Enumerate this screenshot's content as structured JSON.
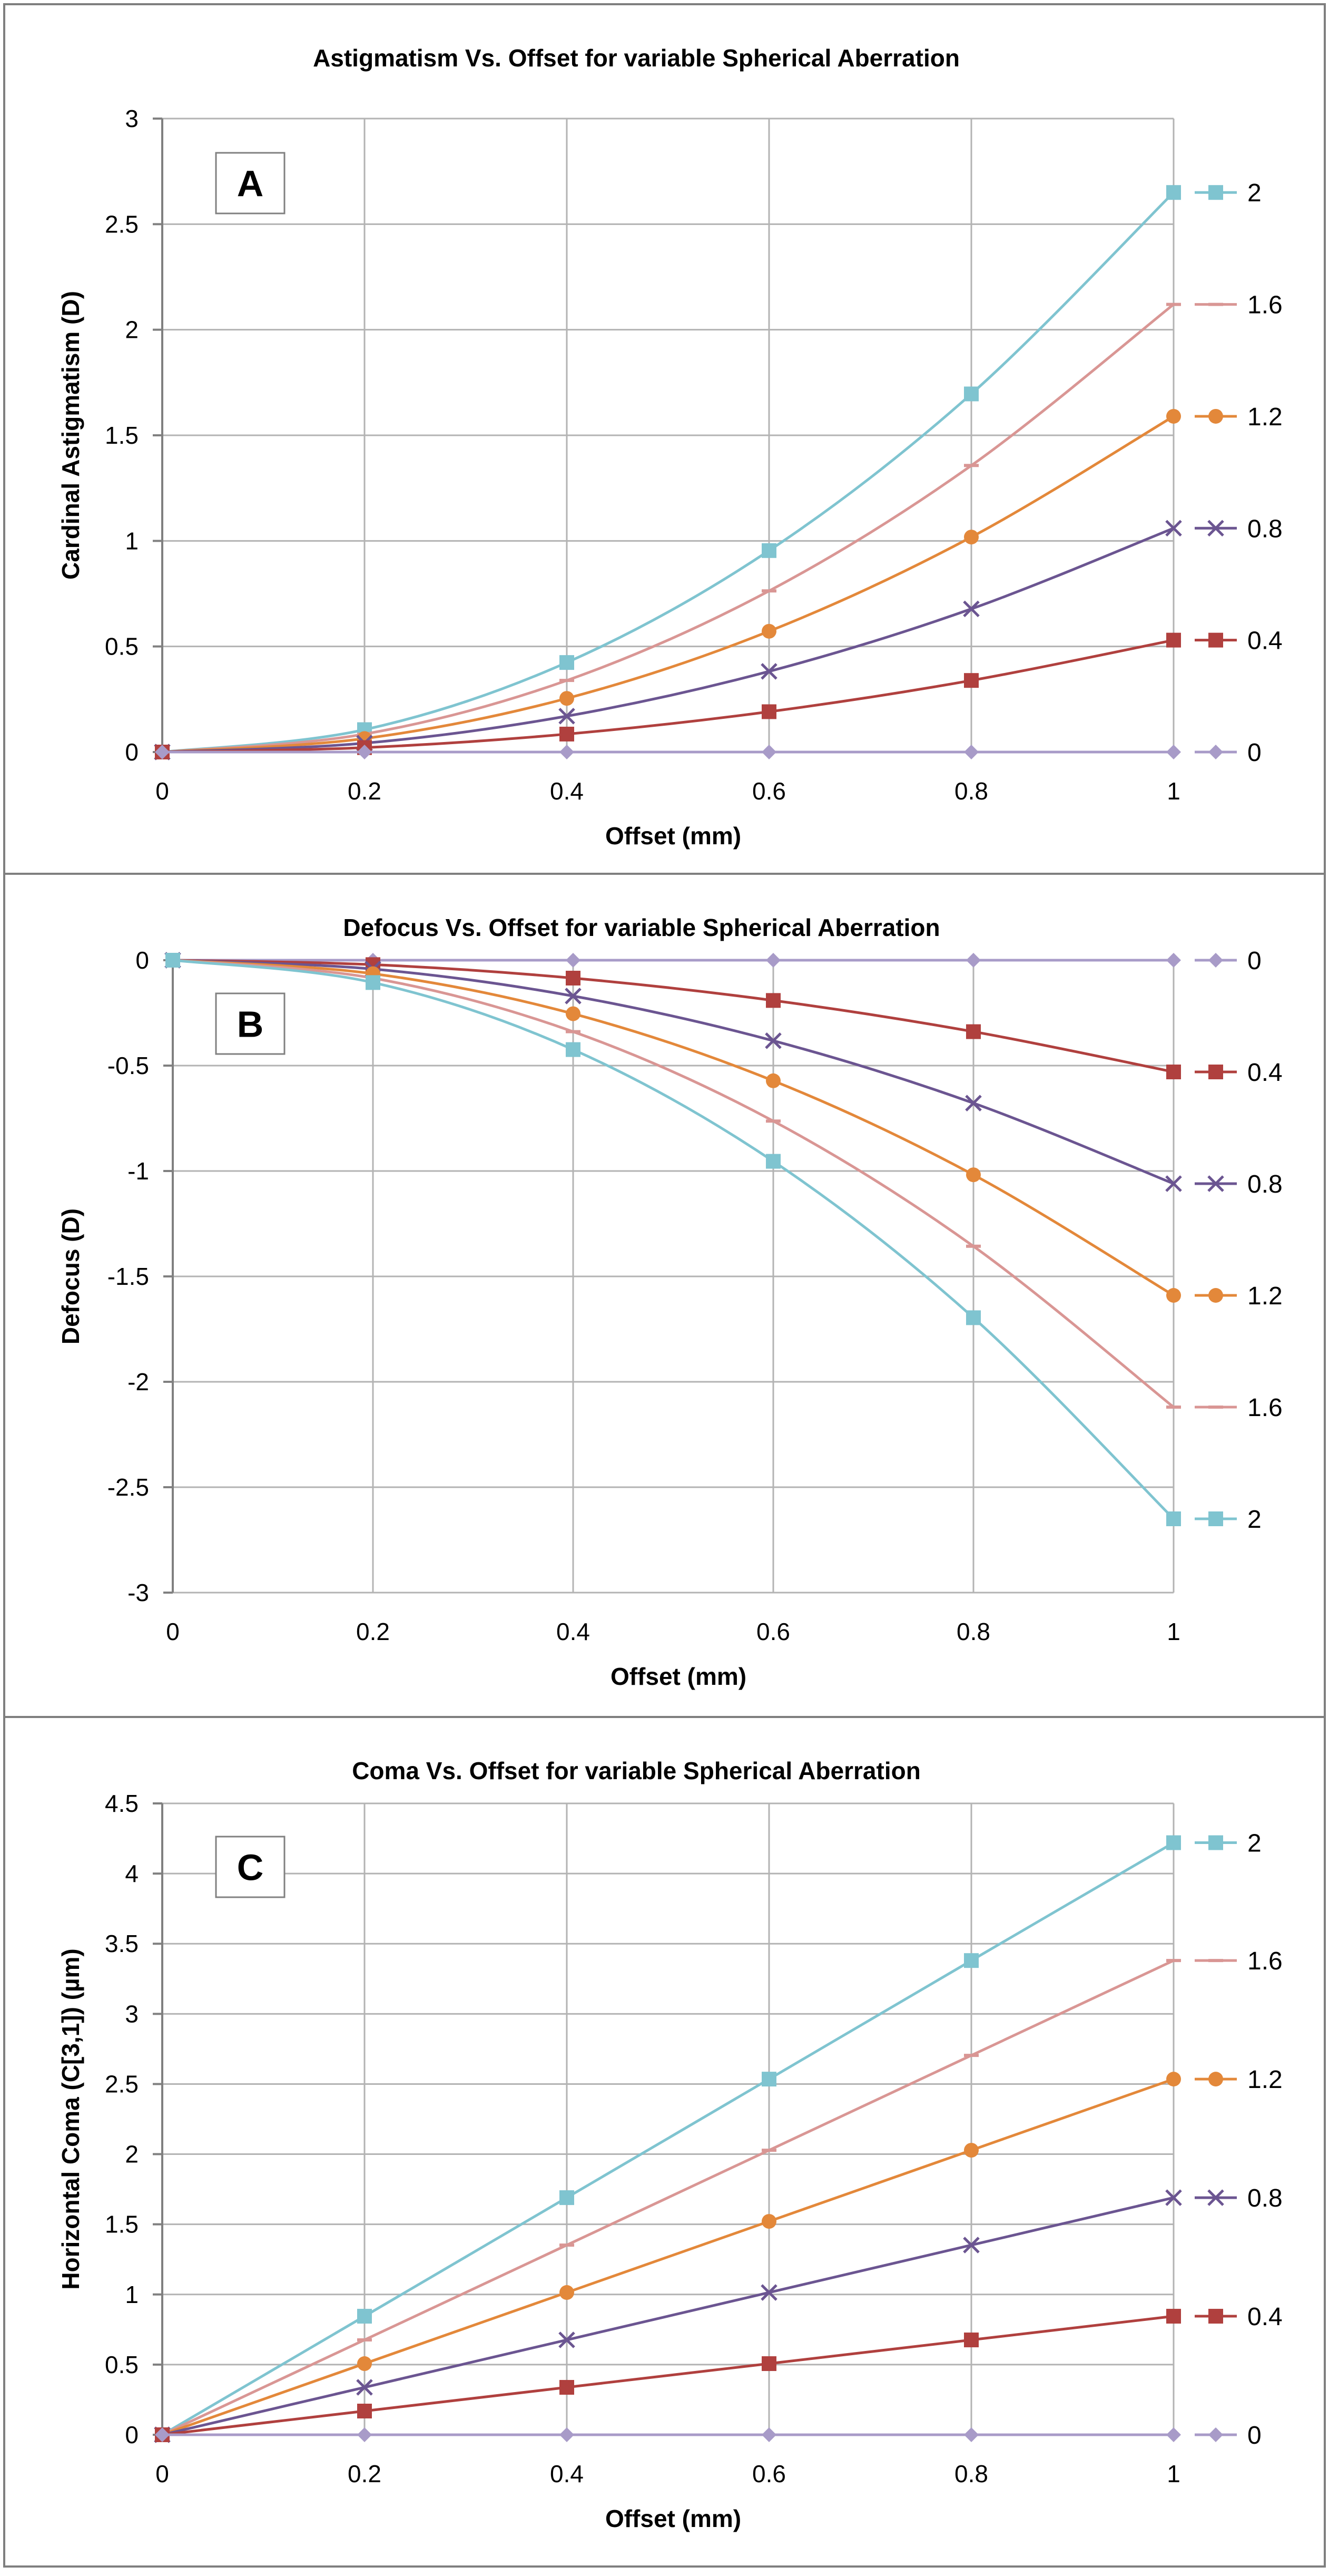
{
  "chart_data": [
    {
      "type": "line",
      "panel_label": "A",
      "title": "Astigmatism Vs. Offset for variable Spherical Aberration",
      "xlabel": "Offset (mm)",
      "ylabel": "Cardinal Astigmatism (D)",
      "x": [
        0,
        0.2,
        0.4,
        0.6,
        0.8,
        1
      ],
      "x_ticks": [
        "0",
        "0.2",
        "0.4",
        "0.6",
        "0.8",
        "1"
      ],
      "xlim": [
        0,
        1
      ],
      "ylim": [
        0,
        3
      ],
      "y_ticks": [
        0,
        0.5,
        1,
        1.5,
        2,
        2.5,
        3
      ],
      "y_tick_labels": [
        "0",
        "0.5",
        "1",
        "1.5",
        "2",
        "2.5",
        "3"
      ],
      "grid": true,
      "legend_position": "right",
      "series": [
        {
          "name": "2",
          "values": [
            0,
            0.106,
            0.424,
            0.954,
            1.696,
            2.65
          ]
        },
        {
          "name": "1.6",
          "values": [
            0,
            0.085,
            0.339,
            0.763,
            1.357,
            2.12
          ]
        },
        {
          "name": "1.2",
          "values": [
            0,
            0.064,
            0.254,
            0.572,
            1.018,
            1.59
          ]
        },
        {
          "name": "0.8",
          "values": [
            0,
            0.042,
            0.17,
            0.382,
            0.678,
            1.06
          ]
        },
        {
          "name": "0.4",
          "values": [
            0,
            0.021,
            0.085,
            0.191,
            0.339,
            0.53
          ]
        },
        {
          "name": "0",
          "values": [
            0,
            0,
            0,
            0,
            0,
            0
          ]
        }
      ]
    },
    {
      "type": "line",
      "panel_label": "B",
      "title": "Defocus Vs. Offset for variable Spherical Aberration",
      "xlabel": "Offset (mm)",
      "ylabel": "Defocus (D)",
      "x": [
        0,
        0.2,
        0.4,
        0.6,
        0.8,
        1
      ],
      "x_ticks": [
        "0",
        "0.2",
        "0.4",
        "0.6",
        "0.8",
        "1"
      ],
      "xlim": [
        0,
        1
      ],
      "ylim": [
        -3,
        0
      ],
      "y_ticks": [
        0,
        -0.5,
        -1,
        -1.5,
        -2,
        -2.5,
        -3
      ],
      "y_tick_labels": [
        "0",
        "-0.5",
        "-1",
        "-1.5",
        "-2",
        "-2.5",
        "-3"
      ],
      "grid": true,
      "legend_position": "right",
      "series": [
        {
          "name": "0",
          "values": [
            0,
            0,
            0,
            0,
            0,
            0
          ]
        },
        {
          "name": "0.4",
          "values": [
            0,
            -0.021,
            -0.085,
            -0.191,
            -0.339,
            -0.53
          ]
        },
        {
          "name": "0.8",
          "values": [
            0,
            -0.042,
            -0.17,
            -0.382,
            -0.678,
            -1.06
          ]
        },
        {
          "name": "1.2",
          "values": [
            0,
            -0.064,
            -0.254,
            -0.572,
            -1.018,
            -1.59
          ]
        },
        {
          "name": "1.6",
          "values": [
            0,
            -0.085,
            -0.339,
            -0.763,
            -1.357,
            -2.12
          ]
        },
        {
          "name": "2",
          "values": [
            0,
            -0.106,
            -0.424,
            -0.954,
            -1.696,
            -2.65
          ]
        }
      ]
    },
    {
      "type": "line",
      "panel_label": "C",
      "title": "Coma Vs. Offset for variable Spherical Aberration",
      "xlabel": "Offset (mm)",
      "ylabel": "Horizontal Coma (C[3,1]) (µm)",
      "x": [
        0,
        0.2,
        0.4,
        0.6,
        0.8,
        1
      ],
      "x_ticks": [
        "0",
        "0.2",
        "0.4",
        "0.6",
        "0.8",
        "1"
      ],
      "xlim": [
        0,
        1
      ],
      "ylim": [
        0,
        4.5
      ],
      "y_ticks": [
        0,
        0.5,
        1,
        1.5,
        2,
        2.5,
        3,
        3.5,
        4,
        4.5
      ],
      "y_tick_labels": [
        "0",
        "0.5",
        "1",
        "1.5",
        "2",
        "2.5",
        "3",
        "3.5",
        "4",
        "4.5"
      ],
      "grid": true,
      "legend_position": "right",
      "series": [
        {
          "name": "2",
          "values": [
            0,
            0.845,
            1.69,
            2.535,
            3.38,
            4.22
          ]
        },
        {
          "name": "1.6",
          "values": [
            0,
            0.676,
            1.352,
            2.028,
            2.704,
            3.38
          ]
        },
        {
          "name": "1.2",
          "values": [
            0,
            0.507,
            1.014,
            1.521,
            2.028,
            2.535
          ]
        },
        {
          "name": "0.8",
          "values": [
            0,
            0.338,
            0.676,
            1.014,
            1.352,
            1.69
          ]
        },
        {
          "name": "0.4",
          "values": [
            0,
            0.169,
            0.338,
            0.507,
            0.676,
            0.845
          ]
        },
        {
          "name": "0",
          "values": [
            0,
            0,
            0,
            0,
            0,
            0
          ]
        }
      ]
    }
  ],
  "series_style": {
    "2": {
      "color": "#7FC4D0",
      "marker": "square"
    },
    "1.6": {
      "color": "#D99694",
      "marker": "dash"
    },
    "1.2": {
      "color": "#E3883A",
      "marker": "circle"
    },
    "0.8": {
      "color": "#6B5591",
      "marker": "x"
    },
    "0.4": {
      "color": "#B0403E",
      "marker": "square"
    },
    "0": {
      "color": "#A89BC8",
      "marker": "diamond"
    }
  }
}
